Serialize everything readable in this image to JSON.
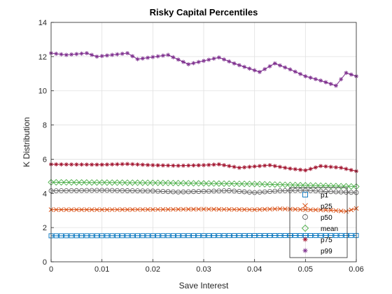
{
  "chart_data": {
    "type": "line",
    "title": "Risky Capital Percentiles",
    "xlabel": "Save Interest",
    "ylabel": "K Distribution",
    "xlim": [
      0,
      0.06
    ],
    "ylim": [
      0,
      14
    ],
    "xticks": [
      0,
      0.01,
      0.02,
      0.03,
      0.04,
      0.05,
      0.06
    ],
    "xtick_labels": [
      "0",
      "0.01",
      "0.02",
      "0.03",
      "0.04",
      "0.05",
      "0.06"
    ],
    "yticks": [
      0,
      2,
      4,
      6,
      8,
      10,
      12,
      14
    ],
    "ytick_labels": [
      "0",
      "2",
      "4",
      "6",
      "8",
      "10",
      "12",
      "14"
    ],
    "grid": true,
    "legend_position": "bottom-right",
    "x_step": 0.001,
    "series": [
      {
        "name": "p1",
        "color": "#0072BD",
        "marker": "square",
        "knots": [
          [
            0,
            1.52
          ],
          [
            0.03,
            1.53
          ],
          [
            0.06,
            1.54
          ]
        ]
      },
      {
        "name": "p25",
        "color": "#D95319",
        "marker": "x",
        "knots": [
          [
            0,
            3.05
          ],
          [
            0.01,
            3.05
          ],
          [
            0.02,
            3.06
          ],
          [
            0.03,
            3.08
          ],
          [
            0.04,
            3.05
          ],
          [
            0.045,
            3.1
          ],
          [
            0.05,
            3.05
          ],
          [
            0.055,
            3.02
          ],
          [
            0.058,
            2.95
          ],
          [
            0.06,
            3.12
          ]
        ]
      },
      {
        "name": "p50",
        "color": "#606060",
        "marker": "circle",
        "knots": [
          [
            0,
            4.15
          ],
          [
            0.01,
            4.18
          ],
          [
            0.02,
            4.14
          ],
          [
            0.025,
            4.08
          ],
          [
            0.03,
            4.12
          ],
          [
            0.035,
            4.16
          ],
          [
            0.04,
            4.05
          ],
          [
            0.045,
            4.15
          ],
          [
            0.05,
            4.18
          ],
          [
            0.055,
            4.1
          ],
          [
            0.06,
            4.05
          ]
        ]
      },
      {
        "name": "mean",
        "color": "#4DAF4A",
        "marker": "diamond",
        "knots": [
          [
            0,
            4.65
          ],
          [
            0.02,
            4.62
          ],
          [
            0.04,
            4.55
          ],
          [
            0.06,
            4.4
          ]
        ]
      },
      {
        "name": "p75",
        "color": "#A2142F",
        "marker": "star",
        "knots": [
          [
            0,
            5.7
          ],
          [
            0.01,
            5.68
          ],
          [
            0.015,
            5.72
          ],
          [
            0.02,
            5.65
          ],
          [
            0.025,
            5.62
          ],
          [
            0.03,
            5.65
          ],
          [
            0.033,
            5.7
          ],
          [
            0.037,
            5.5
          ],
          [
            0.043,
            5.65
          ],
          [
            0.047,
            5.45
          ],
          [
            0.05,
            5.35
          ],
          [
            0.053,
            5.6
          ],
          [
            0.057,
            5.5
          ],
          [
            0.06,
            5.3
          ]
        ]
      },
      {
        "name": "p99",
        "color": "#7E2F8E",
        "marker": "star",
        "knots": [
          [
            0,
            12.2
          ],
          [
            0.003,
            12.1
          ],
          [
            0.007,
            12.2
          ],
          [
            0.009,
            12.0
          ],
          [
            0.012,
            12.1
          ],
          [
            0.015,
            12.2
          ],
          [
            0.017,
            11.85
          ],
          [
            0.023,
            12.1
          ],
          [
            0.027,
            11.55
          ],
          [
            0.033,
            11.95
          ],
          [
            0.036,
            11.6
          ],
          [
            0.039,
            11.3
          ],
          [
            0.041,
            11.1
          ],
          [
            0.044,
            11.6
          ],
          [
            0.047,
            11.25
          ],
          [
            0.05,
            10.85
          ],
          [
            0.053,
            10.6
          ],
          [
            0.056,
            10.3
          ],
          [
            0.058,
            11.05
          ],
          [
            0.06,
            10.85
          ]
        ]
      }
    ]
  }
}
